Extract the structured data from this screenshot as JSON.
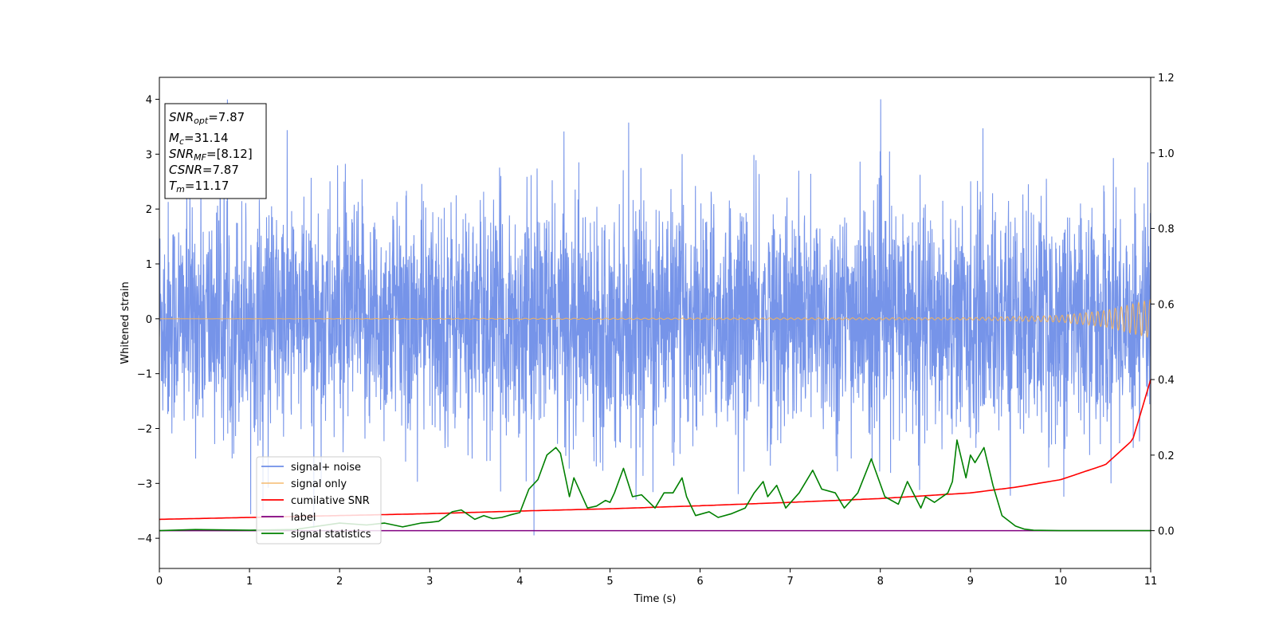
{
  "chart_data": {
    "type": "line",
    "title": "",
    "xlabel": "Time (s)",
    "ylabel": "Whitened strain",
    "ylabel_right": "",
    "xlim": [
      0,
      11
    ],
    "ylim": [
      -4.55,
      4.4
    ],
    "ylim_right": [
      -0.1,
      1.2
    ],
    "x_ticks": [
      "0",
      "1",
      "2",
      "3",
      "4",
      "5",
      "6",
      "7",
      "8",
      "9",
      "10",
      "11"
    ],
    "y_ticks": [
      "−4",
      "−3",
      "−2",
      "−1",
      "0",
      "1",
      "2",
      "3",
      "4"
    ],
    "y_ticks_right": [
      "0.0",
      "0.2",
      "0.4",
      "0.6",
      "0.8",
      "1.0",
      "1.2"
    ],
    "grid": false,
    "legend_position": "lower-left",
    "colors": {
      "signal_noise": "#6f8ee8",
      "signal_only": "#f5b25a",
      "cumulative_snr": "#ff0000",
      "label": "#800080",
      "signal_statistics": "#008000"
    },
    "info_box": {
      "snr_opt": {
        "base": "SNR",
        "sub": "opt",
        "value": "=7.87"
      },
      "mc": {
        "base": "M",
        "sub": "c",
        "value": "=31.14"
      },
      "snr_mf": {
        "base": "SNR",
        "sub": "MF",
        "value": "=[8.12]"
      },
      "csnr": {
        "base": "CSNR",
        "value": "=7.87"
      },
      "tm": {
        "base": "T",
        "sub": "m",
        "value": "=11.17"
      }
    },
    "series": [
      {
        "name": "signal+ noise",
        "axis": "left",
        "description_points": {
          "envelope": [
            -2.4,
            2.4
          ],
          "peak_max": 4.0,
          "peak_min": -4.15
        }
      },
      {
        "name": "signal only",
        "axis": "left",
        "x": [
          0,
          9,
          10,
          10.5,
          11
        ],
        "amplitude": [
          0.0,
          0.02,
          0.06,
          0.15,
          0.35
        ]
      },
      {
        "name": "cumilative SNR",
        "axis": "right",
        "x": [
          0,
          1,
          2,
          3,
          4,
          5,
          6,
          7,
          8,
          9,
          9.5,
          10,
          10.5,
          10.8,
          11
        ],
        "y": [
          0.03,
          0.035,
          0.04,
          0.045,
          0.052,
          0.058,
          0.066,
          0.075,
          0.085,
          0.1,
          0.115,
          0.135,
          0.175,
          0.24,
          0.4
        ]
      },
      {
        "name": "label",
        "axis": "right",
        "x": [
          0,
          11
        ],
        "y": [
          0.0,
          0.0
        ]
      },
      {
        "name": "signal statistics",
        "axis": "right",
        "x": [
          0,
          0.4,
          1.0,
          1.5,
          2.0,
          2.3,
          2.5,
          2.7,
          2.9,
          3.0,
          3.1,
          3.25,
          3.35,
          3.5,
          3.6,
          3.7,
          3.8,
          3.9,
          4.0,
          4.1,
          4.2,
          4.3,
          4.4,
          4.45,
          4.55,
          4.6,
          4.75,
          4.85,
          4.95,
          5.0,
          5.05,
          5.15,
          5.25,
          5.35,
          5.5,
          5.6,
          5.7,
          5.8,
          5.85,
          5.95,
          6.1,
          6.2,
          6.35,
          6.5,
          6.6,
          6.7,
          6.75,
          6.85,
          6.95,
          7.1,
          7.25,
          7.35,
          7.5,
          7.6,
          7.75,
          7.9,
          8.05,
          8.2,
          8.3,
          8.45,
          8.5,
          8.6,
          8.75,
          8.8,
          8.85,
          8.95,
          9.0,
          9.05,
          9.15,
          9.25,
          9.35,
          9.5,
          9.6,
          9.7,
          10.0,
          10.5,
          11.0
        ],
        "y": [
          0.0,
          0.003,
          0.001,
          0.003,
          0.02,
          0.015,
          0.02,
          0.01,
          0.02,
          0.022,
          0.025,
          0.05,
          0.055,
          0.03,
          0.04,
          0.032,
          0.035,
          0.042,
          0.048,
          0.11,
          0.135,
          0.2,
          0.22,
          0.205,
          0.09,
          0.14,
          0.06,
          0.065,
          0.08,
          0.075,
          0.1,
          0.165,
          0.09,
          0.095,
          0.06,
          0.1,
          0.1,
          0.14,
          0.09,
          0.04,
          0.05,
          0.035,
          0.045,
          0.06,
          0.1,
          0.13,
          0.09,
          0.12,
          0.06,
          0.1,
          0.16,
          0.11,
          0.1,
          0.06,
          0.1,
          0.19,
          0.09,
          0.07,
          0.13,
          0.06,
          0.09,
          0.075,
          0.1,
          0.13,
          0.24,
          0.14,
          0.2,
          0.18,
          0.22,
          0.12,
          0.04,
          0.012,
          0.004,
          0.001,
          0.0,
          0.0,
          0.0
        ]
      }
    ]
  }
}
